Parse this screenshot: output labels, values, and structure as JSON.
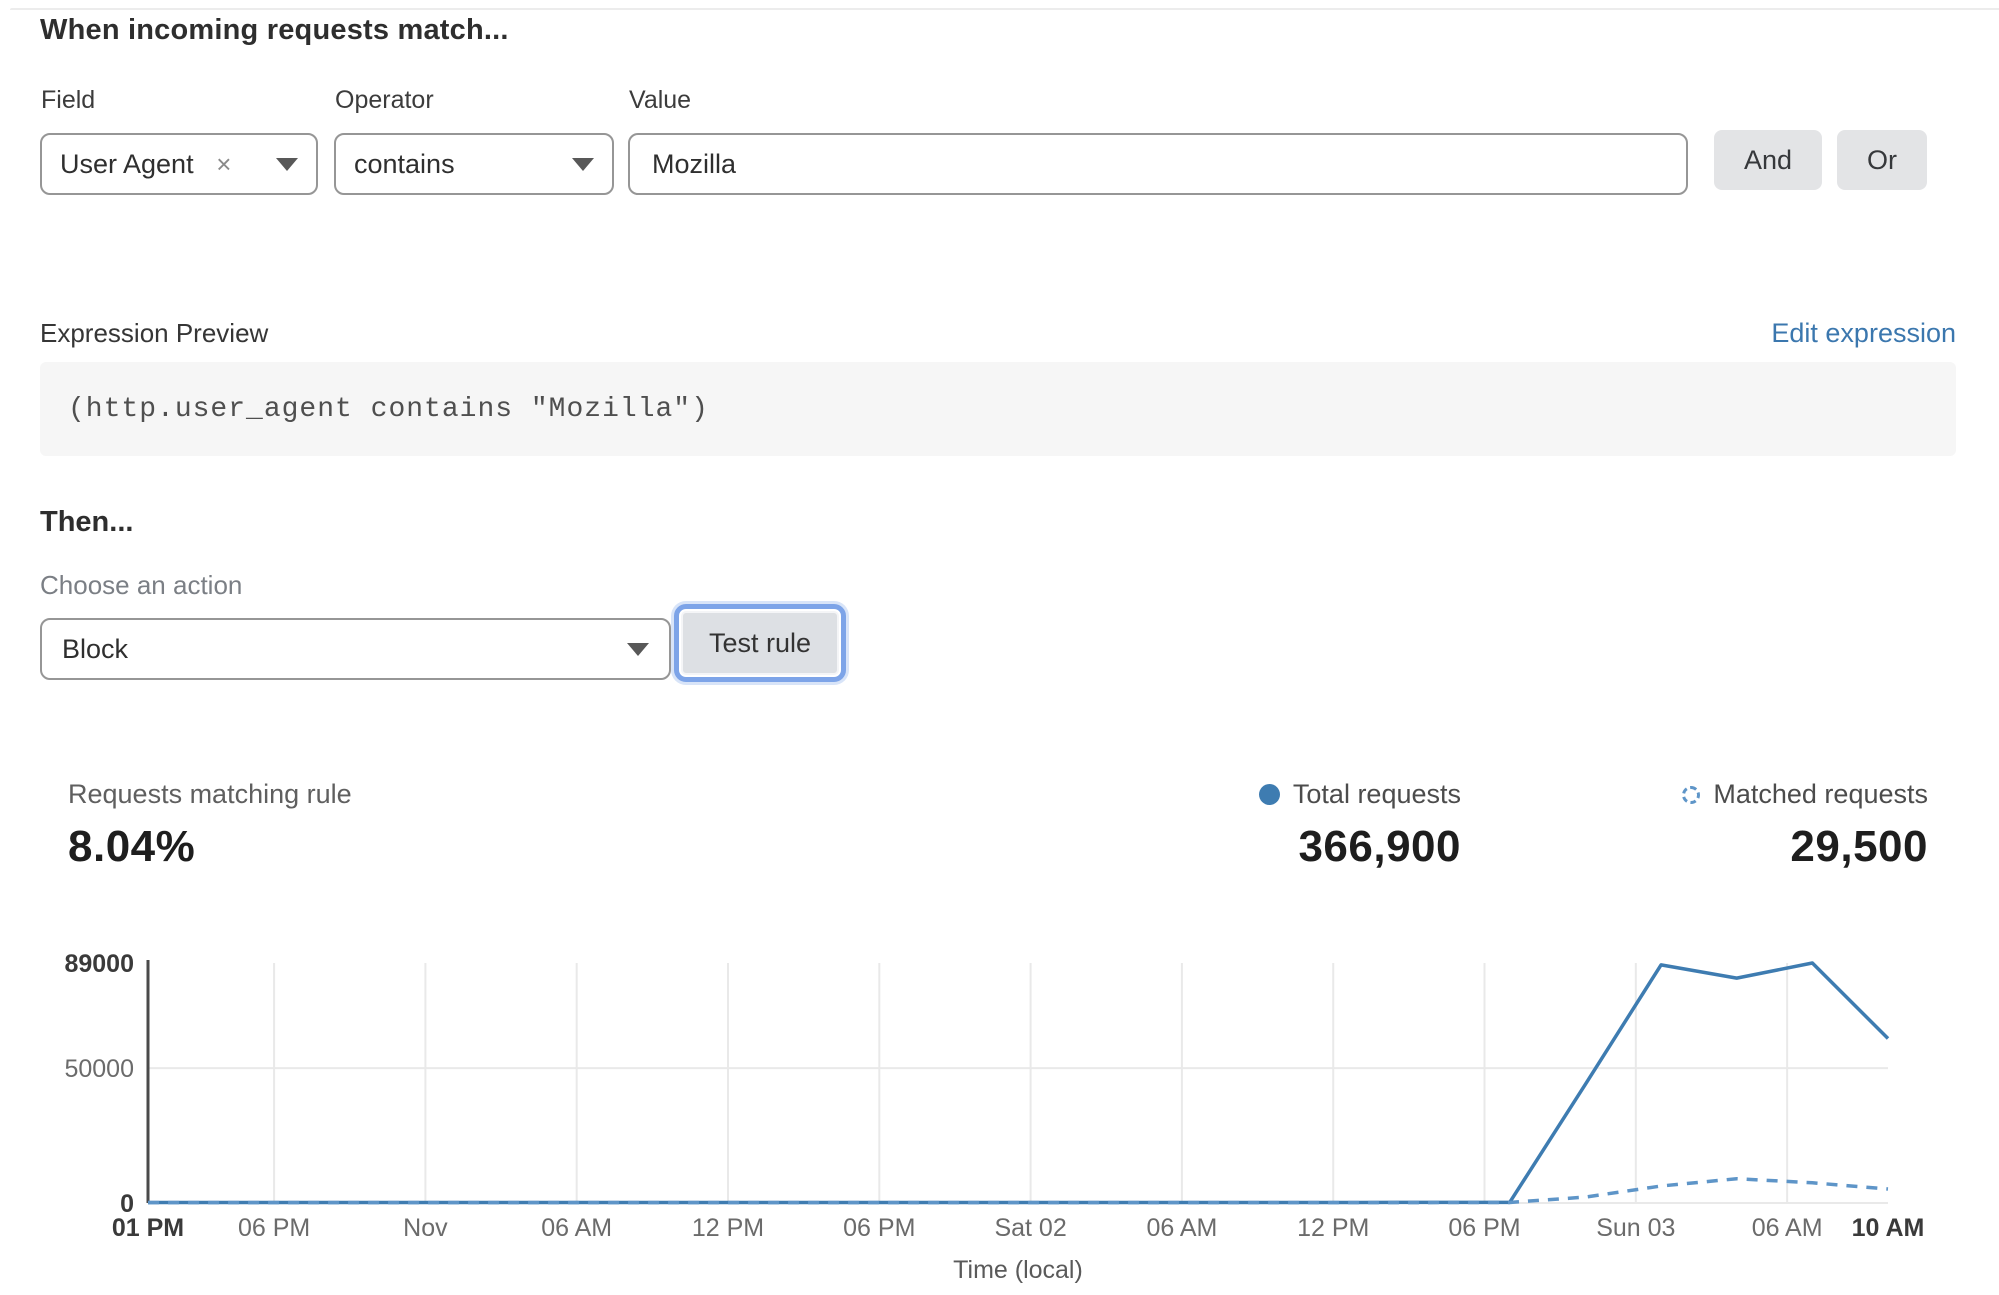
{
  "header": {
    "title": "When incoming requests match..."
  },
  "form": {
    "field": {
      "label": "Field",
      "value": "User Agent",
      "clear_icon": "×"
    },
    "operator": {
      "label": "Operator",
      "value": "contains"
    },
    "value": {
      "label": "Value",
      "value": "Mozilla"
    },
    "and_label": "And",
    "or_label": "Or"
  },
  "expression": {
    "label": "Expression Preview",
    "edit_link": "Edit expression",
    "code": "(http.user_agent contains \"Mozilla\")"
  },
  "then": {
    "title": "Then...",
    "action_label": "Choose an action",
    "action_value": "Block",
    "test_button": "Test rule"
  },
  "stats": {
    "matching": {
      "label": "Requests matching rule",
      "value": "8.04%"
    },
    "total": {
      "label": "Total requests",
      "value": "366,900"
    },
    "matched": {
      "label": "Matched requests",
      "value": "29,500"
    }
  },
  "colors": {
    "line_solid": "#3e7cb1",
    "line_dashed": "#5e95c8",
    "link_blue": "#3b77ae",
    "focus_ring": "#7da4e8",
    "gridline": "#e9e9e9",
    "axis": "#4a4a4a"
  },
  "chart_data": {
    "type": "line",
    "title": "",
    "xlabel": "Time (local)",
    "ylabel": "",
    "x_unit": "hours after Fri 01 PM",
    "ylim": [
      0,
      89000
    ],
    "grid": true,
    "legend_position": "top-right",
    "y_ticks": [
      {
        "value": 0,
        "label": "0",
        "bold": true
      },
      {
        "value": 50000,
        "label": "50000",
        "bold": false
      },
      {
        "value": 89000,
        "label": "89000",
        "bold": true
      }
    ],
    "x_ticks": [
      {
        "h": 0,
        "label": "01 PM",
        "bold": true,
        "grid": false
      },
      {
        "h": 5,
        "label": "06 PM",
        "bold": false,
        "grid": true
      },
      {
        "h": 11,
        "label": "Nov",
        "bold": false,
        "grid": true
      },
      {
        "h": 17,
        "label": "06 AM",
        "bold": false,
        "grid": true
      },
      {
        "h": 23,
        "label": "12 PM",
        "bold": false,
        "grid": true
      },
      {
        "h": 29,
        "label": "06 PM",
        "bold": false,
        "grid": true
      },
      {
        "h": 35,
        "label": "Sat 02",
        "bold": false,
        "grid": true
      },
      {
        "h": 41,
        "label": "06 AM",
        "bold": false,
        "grid": true
      },
      {
        "h": 47,
        "label": "12 PM",
        "bold": false,
        "grid": true
      },
      {
        "h": 53,
        "label": "06 PM",
        "bold": false,
        "grid": true
      },
      {
        "h": 59,
        "label": "Sun 03",
        "bold": false,
        "grid": true
      },
      {
        "h": 65,
        "label": "06 AM",
        "bold": false,
        "grid": true
      },
      {
        "h": 69,
        "label": "10 AM",
        "bold": true,
        "grid": false
      }
    ],
    "series": [
      {
        "name": "Total requests",
        "style": "solid",
        "color": "#3e7cb1",
        "points": [
          [
            0,
            200
          ],
          [
            6,
            200
          ],
          [
            12,
            200
          ],
          [
            18,
            200
          ],
          [
            24,
            200
          ],
          [
            30,
            200
          ],
          [
            36,
            200
          ],
          [
            42,
            200
          ],
          [
            48,
            200
          ],
          [
            54,
            250
          ],
          [
            57,
            44000
          ],
          [
            60,
            88300
          ],
          [
            63,
            83400
          ],
          [
            66,
            89000
          ],
          [
            69,
            61000
          ]
        ]
      },
      {
        "name": "Matched requests",
        "style": "dashed",
        "color": "#5e95c8",
        "points": [
          [
            0,
            120
          ],
          [
            6,
            120
          ],
          [
            12,
            120
          ],
          [
            18,
            120
          ],
          [
            24,
            120
          ],
          [
            30,
            120
          ],
          [
            36,
            120
          ],
          [
            42,
            120
          ],
          [
            48,
            120
          ],
          [
            54,
            200
          ],
          [
            57,
            2200
          ],
          [
            60,
            6300
          ],
          [
            63,
            9000
          ],
          [
            66,
            7500
          ],
          [
            69,
            5200
          ]
        ]
      }
    ]
  }
}
